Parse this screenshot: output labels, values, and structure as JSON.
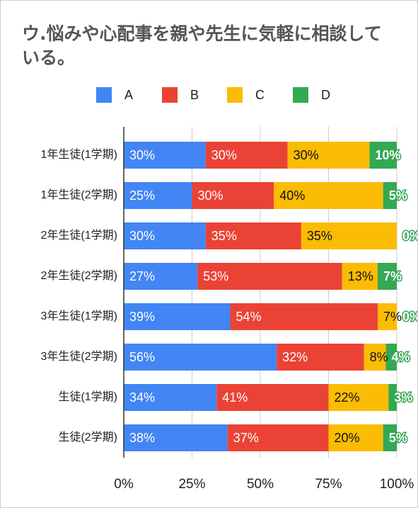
{
  "chart_data": {
    "type": "stacked-bar-horizontal",
    "title": "ウ.悩みや心配事を親や先生に気軽に相談している。",
    "categories": [
      "1年生徒(1学期)",
      "1年生徒(2学期)",
      "2年生徒(1学期)",
      "2年生徒(2学期)",
      "3年生徒(1学期)",
      "3年生徒(2学期)",
      "生徒(1学期)",
      "生徒(2学期)"
    ],
    "series": [
      {
        "name": "A",
        "color": "#4285f4",
        "values": [
          30,
          25,
          30,
          27,
          39,
          56,
          34,
          38
        ],
        "value_labels": [
          "30%",
          "25%",
          "30%",
          "27%",
          "39%",
          "56%",
          "34%",
          "38%"
        ]
      },
      {
        "name": "B",
        "color": "#ea4335",
        "values": [
          30,
          30,
          35,
          53,
          54,
          32,
          41,
          37
        ],
        "value_labels": [
          "30%",
          "30%",
          "35%",
          "53%",
          "54%",
          "32%",
          "41%",
          "37%"
        ]
      },
      {
        "name": "C",
        "color": "#fbbc04",
        "values": [
          30,
          40,
          35,
          13,
          7,
          8,
          22,
          20
        ],
        "value_labels": [
          "30%",
          "40%",
          "35%",
          "13%",
          "7%",
          "8%",
          "22%",
          "20%"
        ]
      },
      {
        "name": "D",
        "color": "#34a853",
        "values": [
          10,
          5,
          0,
          7,
          0,
          4,
          3,
          5
        ],
        "value_labels": [
          "10%",
          "5%",
          "0%",
          "7%",
          "0%",
          "4%",
          "3%",
          "5%"
        ]
      }
    ],
    "xlim": [
      0,
      100
    ],
    "xticks": [
      {
        "value": 0,
        "label": "0%"
      },
      {
        "value": 25,
        "label": "25%"
      },
      {
        "value": 50,
        "label": "50%"
      },
      {
        "value": 75,
        "label": "75%"
      },
      {
        "value": 100,
        "label": "100%"
      }
    ],
    "grid": true,
    "legend": "top"
  }
}
